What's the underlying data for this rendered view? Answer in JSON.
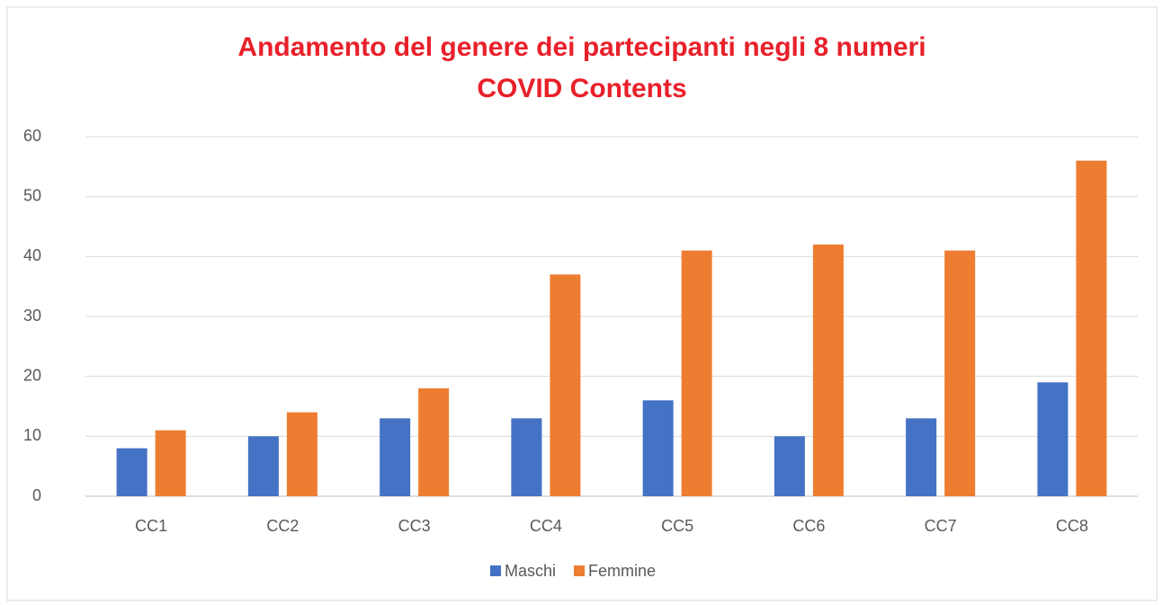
{
  "chart_data": {
    "type": "bar",
    "title": [
      "Andamento del genere dei partecipanti negli 8 numeri",
      "COVID Contents"
    ],
    "categories": [
      "CC1",
      "CC2",
      "CC3",
      "CC4",
      "CC5",
      "CC6",
      "CC7",
      "CC8"
    ],
    "series": [
      {
        "name": "Maschi",
        "color": "#4472c4",
        "values": [
          8,
          10,
          13,
          13,
          16,
          10,
          13,
          19
        ]
      },
      {
        "name": "Femmine",
        "color": "#ed7d31",
        "values": [
          11,
          14,
          18,
          37,
          41,
          42,
          41,
          56
        ]
      }
    ],
    "ylim": [
      0,
      60
    ],
    "yticks": [
      0,
      10,
      20,
      30,
      40,
      50,
      60
    ],
    "grid": true,
    "legend": "bottom"
  }
}
